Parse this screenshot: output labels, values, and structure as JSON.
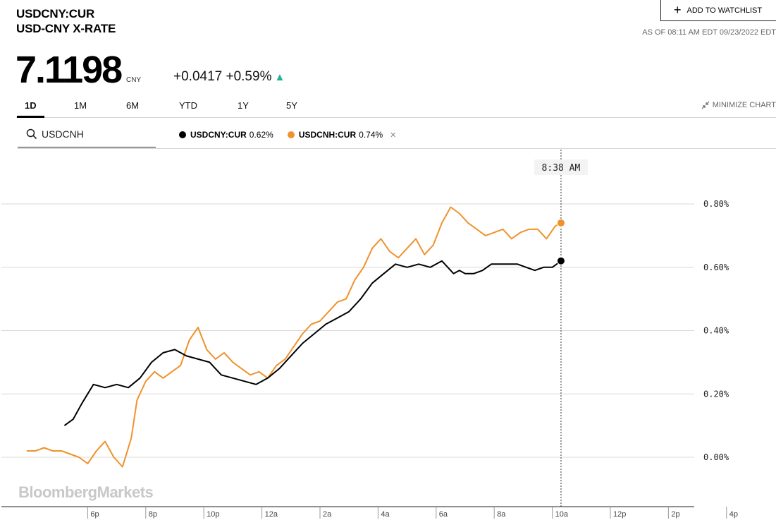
{
  "header": {
    "ticker": "USDCNY:CUR",
    "name": "USD-CNY X-RATE",
    "watchlist_label": "ADD TO WATCHLIST",
    "as_of": "AS OF 08:11 AM EDT 09/23/2022 EDT",
    "price": "7.1198",
    "currency": "CNY",
    "change": "+0.0417 +0.59%",
    "direction_icon": "triangle-up-icon"
  },
  "tabs": [
    "1D",
    "1M",
    "6M",
    "YTD",
    "1Y",
    "5Y"
  ],
  "active_tab": "1D",
  "minimize_label": "MINIMIZE CHART",
  "search": {
    "value": "USDCNH",
    "icon": "search-icon"
  },
  "legend": [
    {
      "name": "USDCNY:CUR",
      "value": "0.62%",
      "color": "#000000"
    },
    {
      "name": "USDCNH:CUR",
      "value": "0.74%",
      "color": "#f0922c"
    }
  ],
  "colors": {
    "accent_up": "#1cb58f",
    "cny": "#000000",
    "cnh": "#f0922c"
  },
  "crosshair_label": "8:38 AM",
  "logo": "BloombergMarkets",
  "chart_data": {
    "type": "line",
    "x_ticks": [
      "6p",
      "8p",
      "10p",
      "12a",
      "2a",
      "4a",
      "6a",
      "8a",
      "10a",
      "12p",
      "2p",
      "4p"
    ],
    "x_range_hours": [
      -2.1,
      22.5
    ],
    "y_ticks": [
      "0.80%",
      "0.60%",
      "0.40%",
      "0.20%",
      "0.00%"
    ],
    "y_tick_values": [
      0.8,
      0.6,
      0.4,
      0.2,
      0.0
    ],
    "ylim": [
      -0.15,
      0.95
    ],
    "series": [
      {
        "name": "USDCNY:CUR",
        "color": "#000000",
        "x": [
          -0.8,
          -0.5,
          -0.2,
          0.2,
          0.6,
          1.0,
          1.4,
          1.8,
          2.2,
          2.6,
          3.0,
          3.4,
          3.8,
          4.2,
          4.6,
          5.0,
          5.4,
          5.8,
          6.2,
          6.6,
          7.0,
          7.4,
          7.8,
          8.2,
          8.6,
          9.0,
          9.4,
          9.8,
          10.2,
          10.6,
          11.0,
          11.4,
          11.8,
          12.2,
          12.6,
          12.8,
          13.0,
          13.3,
          13.6,
          13.9,
          14.2,
          14.5,
          14.8,
          15.1,
          15.4,
          15.7,
          16.0,
          16.3
        ],
        "y": [
          0.1,
          0.12,
          0.17,
          0.23,
          0.22,
          0.23,
          0.22,
          0.25,
          0.3,
          0.33,
          0.34,
          0.32,
          0.31,
          0.3,
          0.26,
          0.25,
          0.24,
          0.23,
          0.25,
          0.28,
          0.32,
          0.36,
          0.39,
          0.42,
          0.44,
          0.46,
          0.5,
          0.55,
          0.58,
          0.61,
          0.6,
          0.61,
          0.6,
          0.62,
          0.58,
          0.59,
          0.58,
          0.58,
          0.59,
          0.61,
          0.61,
          0.61,
          0.61,
          0.6,
          0.59,
          0.6,
          0.6,
          0.62
        ]
      },
      {
        "name": "USDCNH:CUR",
        "color": "#f0922c",
        "x": [
          -2.1,
          -1.8,
          -1.5,
          -1.2,
          -0.9,
          -0.6,
          -0.3,
          0.0,
          0.3,
          0.6,
          0.9,
          1.2,
          1.5,
          1.7,
          2.0,
          2.3,
          2.6,
          2.9,
          3.2,
          3.5,
          3.8,
          4.1,
          4.4,
          4.7,
          5.0,
          5.3,
          5.6,
          5.9,
          6.2,
          6.5,
          6.8,
          7.1,
          7.4,
          7.7,
          8.0,
          8.3,
          8.6,
          8.9,
          9.2,
          9.5,
          9.8,
          10.1,
          10.4,
          10.7,
          11.0,
          11.3,
          11.6,
          11.9,
          12.2,
          12.5,
          12.8,
          13.1,
          13.4,
          13.7,
          14.0,
          14.3,
          14.6,
          14.9,
          15.2,
          15.5,
          15.8,
          16.1,
          16.3
        ],
        "y": [
          0.02,
          0.02,
          0.03,
          0.02,
          0.02,
          0.01,
          0.0,
          -0.02,
          0.02,
          0.05,
          0.0,
          -0.03,
          0.06,
          0.18,
          0.24,
          0.27,
          0.25,
          0.27,
          0.29,
          0.37,
          0.41,
          0.34,
          0.31,
          0.33,
          0.3,
          0.28,
          0.26,
          0.27,
          0.25,
          0.29,
          0.31,
          0.35,
          0.39,
          0.42,
          0.43,
          0.46,
          0.49,
          0.5,
          0.56,
          0.6,
          0.66,
          0.69,
          0.65,
          0.63,
          0.66,
          0.69,
          0.64,
          0.67,
          0.74,
          0.79,
          0.77,
          0.74,
          0.72,
          0.7,
          0.71,
          0.72,
          0.69,
          0.71,
          0.72,
          0.72,
          0.69,
          0.73,
          0.74
        ]
      }
    ],
    "crosshair_x": 16.3
  }
}
